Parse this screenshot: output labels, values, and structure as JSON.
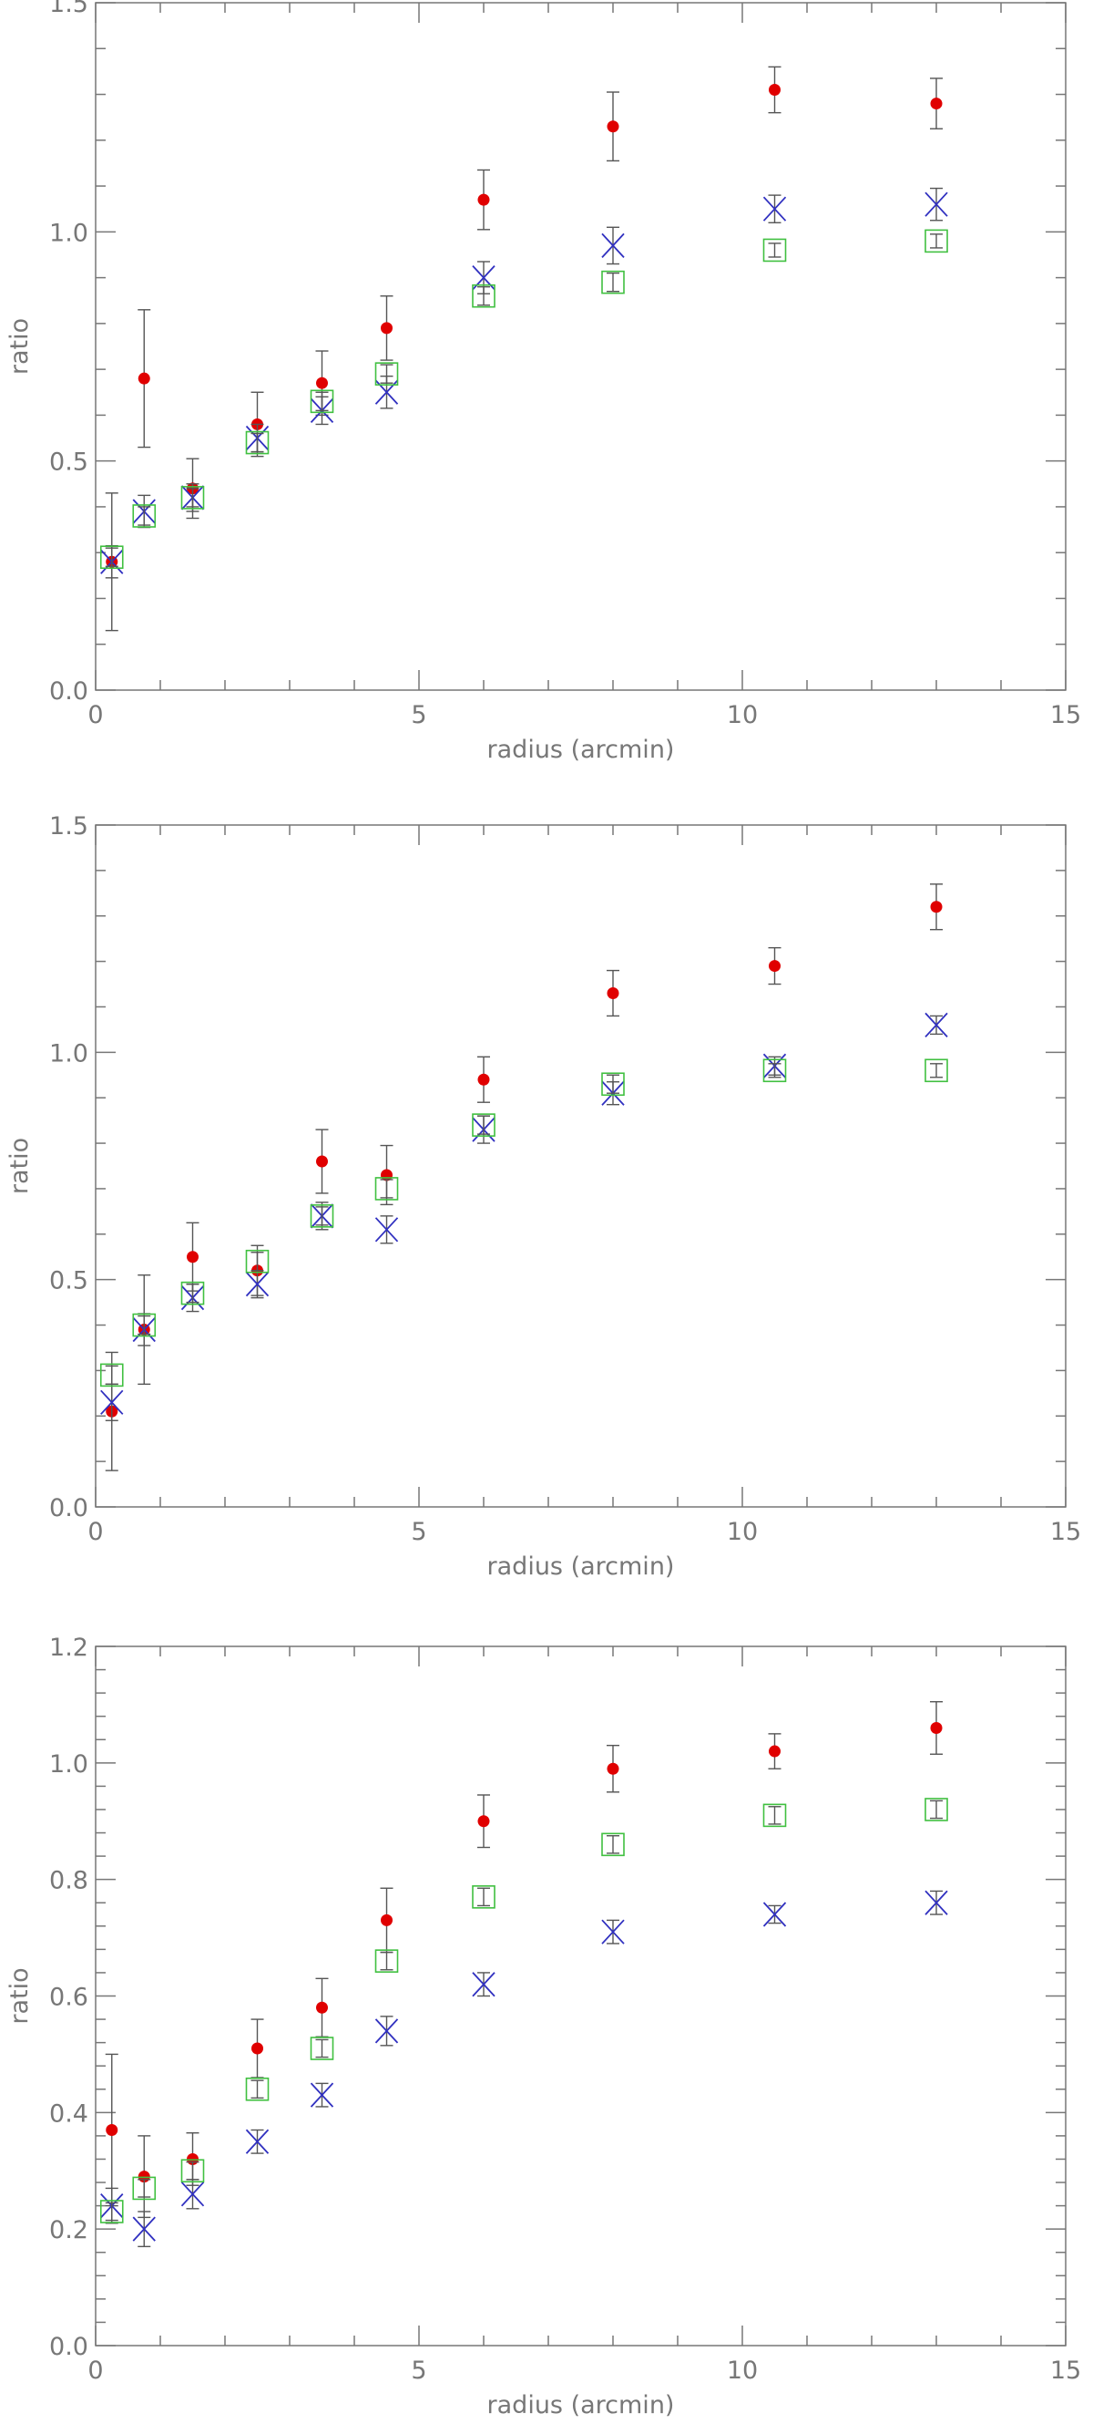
{
  "chart_data": [
    {
      "type": "scatter",
      "xlabel": "radius (arcmin)",
      "ylabel": "ratio",
      "xlim": [
        0,
        15
      ],
      "ylim": [
        0,
        1.5
      ],
      "x_ticks": [
        0,
        5,
        10,
        15
      ],
      "x_tick_labels": [
        "0",
        "5",
        "10",
        "15"
      ],
      "y_ticks": [
        0,
        0.5,
        1,
        1.5
      ],
      "y_tick_labels": [
        "0.0",
        "0.5",
        "1.0",
        "1.5"
      ],
      "grid": false,
      "series": [
        {
          "marker": "dot",
          "color": "#e00000",
          "x": [
            0.25,
            0.75,
            1.5,
            2.5,
            3.5,
            4.5,
            6.0,
            8.0,
            10.5,
            13.0
          ],
          "y": [
            0.28,
            0.68,
            0.44,
            0.58,
            0.67,
            0.79,
            1.07,
            1.23,
            1.31,
            1.28
          ],
          "err": [
            0.15,
            0.15,
            0.065,
            0.07,
            0.07,
            0.07,
            0.065,
            0.075,
            0.05,
            0.055
          ]
        },
        {
          "marker": "x",
          "color": "#3030c0",
          "x": [
            0.25,
            0.75,
            1.5,
            2.5,
            3.5,
            4.5,
            6.0,
            8.0,
            10.5,
            13.0
          ],
          "y": [
            0.28,
            0.39,
            0.42,
            0.55,
            0.61,
            0.65,
            0.9,
            0.97,
            1.05,
            1.06
          ],
          "err": [
            0.035,
            0.035,
            0.03,
            0.03,
            0.03,
            0.035,
            0.035,
            0.04,
            0.03,
            0.035
          ]
        },
        {
          "marker": "square",
          "color": "#40c040",
          "x": [
            0.25,
            0.75,
            1.5,
            2.5,
            3.5,
            4.5,
            6.0,
            8.0,
            10.5,
            13.0
          ],
          "y": [
            0.29,
            0.38,
            0.42,
            0.54,
            0.63,
            0.69,
            0.86,
            0.89,
            0.96,
            0.98
          ],
          "err": [
            0.02,
            0.02,
            0.02,
            0.02,
            0.02,
            0.02,
            0.02,
            0.02,
            0.015,
            0.015
          ]
        }
      ]
    },
    {
      "type": "scatter",
      "xlabel": "radius (arcmin)",
      "ylabel": "ratio",
      "xlim": [
        0,
        15
      ],
      "ylim": [
        0,
        1.5
      ],
      "x_ticks": [
        0,
        5,
        10,
        15
      ],
      "x_tick_labels": [
        "0",
        "5",
        "10",
        "15"
      ],
      "y_ticks": [
        0,
        0.5,
        1,
        1.5
      ],
      "y_tick_labels": [
        "0.0",
        "0.5",
        "1.0",
        "1.5"
      ],
      "grid": false,
      "series": [
        {
          "marker": "dot",
          "color": "#e00000",
          "x": [
            0.25,
            0.75,
            1.5,
            2.5,
            3.5,
            4.5,
            6.0,
            8.0,
            10.5,
            13.0
          ],
          "y": [
            0.21,
            0.39,
            0.55,
            0.52,
            0.76,
            0.73,
            0.94,
            1.13,
            1.19,
            1.32
          ],
          "err": [
            0.13,
            0.12,
            0.075,
            0.055,
            0.07,
            0.065,
            0.05,
            0.05,
            0.04,
            0.05
          ]
        },
        {
          "marker": "x",
          "color": "#3030c0",
          "x": [
            0.25,
            0.75,
            1.5,
            2.5,
            3.5,
            4.5,
            6.0,
            8.0,
            10.5,
            13.0
          ],
          "y": [
            0.23,
            0.39,
            0.46,
            0.49,
            0.64,
            0.61,
            0.83,
            0.91,
            0.97,
            1.06
          ],
          "err": [
            0.04,
            0.035,
            0.03,
            0.03,
            0.03,
            0.03,
            0.03,
            0.025,
            0.02,
            0.02
          ]
        },
        {
          "marker": "square",
          "color": "#40c040",
          "x": [
            0.25,
            0.75,
            1.5,
            2.5,
            3.5,
            4.5,
            6.0,
            8.0,
            10.5,
            13.0
          ],
          "y": [
            0.29,
            0.4,
            0.47,
            0.54,
            0.64,
            0.7,
            0.84,
            0.93,
            0.96,
            0.96
          ],
          "err": [
            0.02,
            0.02,
            0.02,
            0.02,
            0.02,
            0.02,
            0.02,
            0.02,
            0.015,
            0.015
          ]
        }
      ]
    },
    {
      "type": "scatter",
      "xlabel": "radius (arcmin)",
      "ylabel": "ratio",
      "xlim": [
        0,
        15
      ],
      "ylim": [
        0,
        1.2
      ],
      "x_ticks": [
        0,
        5,
        10,
        15
      ],
      "x_tick_labels": [
        "0",
        "5",
        "10",
        "15"
      ],
      "y_ticks": [
        0,
        0.2,
        0.4,
        0.6,
        0.8,
        1.0,
        1.2
      ],
      "y_tick_labels": [
        "0.0",
        "0.2",
        "0.4",
        "0.6",
        "0.8",
        "1.0",
        "1.2"
      ],
      "grid": false,
      "series": [
        {
          "marker": "dot",
          "color": "#e00000",
          "x": [
            0.25,
            0.75,
            1.5,
            2.5,
            3.5,
            4.5,
            6.0,
            8.0,
            10.5,
            13.0
          ],
          "y": [
            0.37,
            0.29,
            0.32,
            0.51,
            0.58,
            0.73,
            0.9,
            0.99,
            1.02,
            1.06
          ],
          "err": [
            0.13,
            0.07,
            0.045,
            0.05,
            0.05,
            0.055,
            0.045,
            0.04,
            0.03,
            0.045
          ]
        },
        {
          "marker": "x",
          "color": "#3030c0",
          "x": [
            0.25,
            0.75,
            1.5,
            2.5,
            3.5,
            4.5,
            6.0,
            8.0,
            10.5,
            13.0
          ],
          "y": [
            0.24,
            0.2,
            0.26,
            0.35,
            0.43,
            0.54,
            0.62,
            0.71,
            0.74,
            0.76
          ],
          "err": [
            0.03,
            0.03,
            0.025,
            0.02,
            0.02,
            0.025,
            0.02,
            0.02,
            0.015,
            0.02
          ]
        },
        {
          "marker": "square",
          "color": "#40c040",
          "x": [
            0.25,
            0.75,
            1.5,
            2.5,
            3.5,
            4.5,
            6.0,
            8.0,
            10.5,
            13.0
          ],
          "y": [
            0.23,
            0.27,
            0.3,
            0.44,
            0.51,
            0.66,
            0.77,
            0.86,
            0.91,
            0.92
          ],
          "err": [
            0.015,
            0.015,
            0.015,
            0.015,
            0.015,
            0.015,
            0.015,
            0.015,
            0.015,
            0.015
          ]
        }
      ]
    }
  ]
}
